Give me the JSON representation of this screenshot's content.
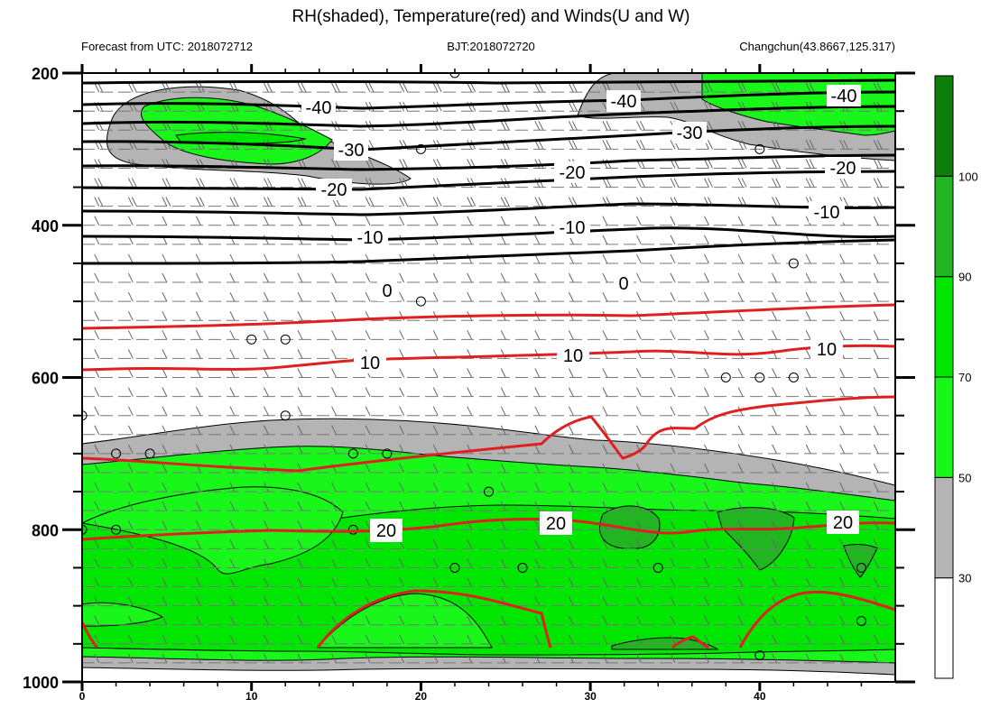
{
  "chart_data": {
    "type": "contour",
    "title": "RH(shaded), Temperature(red) and Winds(U and W)",
    "forecast_label": "Forecast from UTC: 2018072712",
    "bjt_label": "BJT:2018072720",
    "location_label": "Changchun(43.8667,125.317)",
    "xlim": [
      0,
      48
    ],
    "ylim": [
      1000,
      200
    ],
    "y_ticks": [
      200,
      400,
      600,
      800,
      1000
    ],
    "x_ticks": [
      0,
      10,
      20,
      30,
      40
    ],
    "colorbar": {
      "levels": [
        30,
        50,
        70,
        90,
        100
      ],
      "labels": [
        "30",
        "50",
        "70",
        "90",
        "100"
      ],
      "colors": [
        "#ffffff",
        "#b4b4b4",
        "#19f619",
        "#00e600",
        "#21b521",
        "#0c7e0c"
      ]
    },
    "temperature_labels": {
      "neg40": "-40",
      "neg30": "-30",
      "neg20": "-20",
      "neg10": "-10",
      "zero": "0",
      "ten": "10",
      "twenty": "20"
    }
  }
}
